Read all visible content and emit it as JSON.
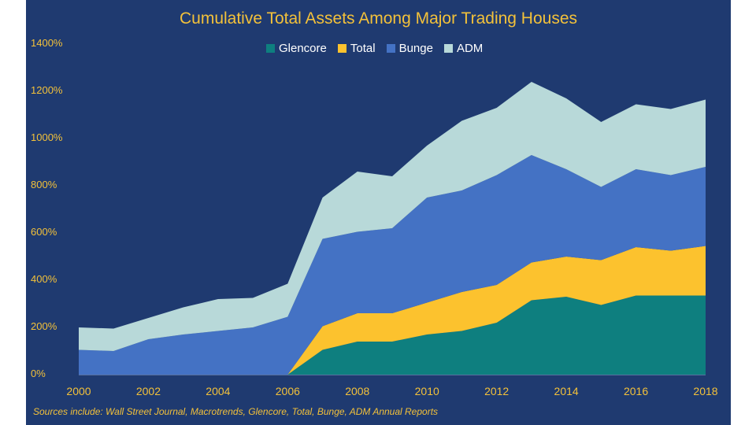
{
  "chart_data": {
    "type": "area",
    "stacked": true,
    "title": "Cumulative Total Assets Among Major Trading Houses",
    "xlabel": "",
    "ylabel": "",
    "x": [
      2000,
      2001,
      2002,
      2003,
      2004,
      2005,
      2006,
      2007,
      2008,
      2009,
      2010,
      2011,
      2012,
      2013,
      2014,
      2015,
      2016,
      2017,
      2018
    ],
    "x_tick_labels": [
      "2000",
      "2002",
      "2004",
      "2006",
      "2008",
      "2010",
      "2012",
      "2014",
      "2016",
      "2018"
    ],
    "x_tick_values": [
      2000,
      2002,
      2004,
      2006,
      2008,
      2010,
      2012,
      2014,
      2016,
      2018
    ],
    "ylim": [
      0,
      1400
    ],
    "y_tick_values": [
      0,
      200,
      400,
      600,
      800,
      1000,
      1200,
      1400
    ],
    "y_tick_labels": [
      "0%",
      "200%",
      "400%",
      "600%",
      "800%",
      "1000%",
      "1200%",
      "1400%"
    ],
    "legend_position": "top-center",
    "series": [
      {
        "name": "Glencore",
        "color": "#0e7f7f",
        "values": [
          0,
          0,
          0,
          0,
          0,
          0,
          0,
          105,
          140,
          140,
          170,
          185,
          220,
          315,
          330,
          295,
          335,
          335,
          335
        ]
      },
      {
        "name": "Total",
        "color": "#fcc22e",
        "values": [
          0,
          0,
          0,
          0,
          0,
          0,
          0,
          100,
          120,
          120,
          135,
          165,
          160,
          160,
          170,
          190,
          205,
          190,
          210
        ]
      },
      {
        "name": "Bunge",
        "color": "#4472c4",
        "values": [
          105,
          100,
          150,
          170,
          185,
          200,
          245,
          370,
          345,
          360,
          445,
          430,
          465,
          455,
          370,
          310,
          330,
          320,
          335
        ]
      },
      {
        "name": "ADM",
        "color": "#b8d9d9",
        "values": [
          95,
          95,
          90,
          115,
          135,
          125,
          140,
          175,
          255,
          220,
          220,
          295,
          285,
          310,
          300,
          275,
          275,
          280,
          285
        ]
      }
    ],
    "source": "Sources include: Wall Street Journal, Macrotrends, Glencore, Total, Bunge, ADM Annual Reports"
  }
}
